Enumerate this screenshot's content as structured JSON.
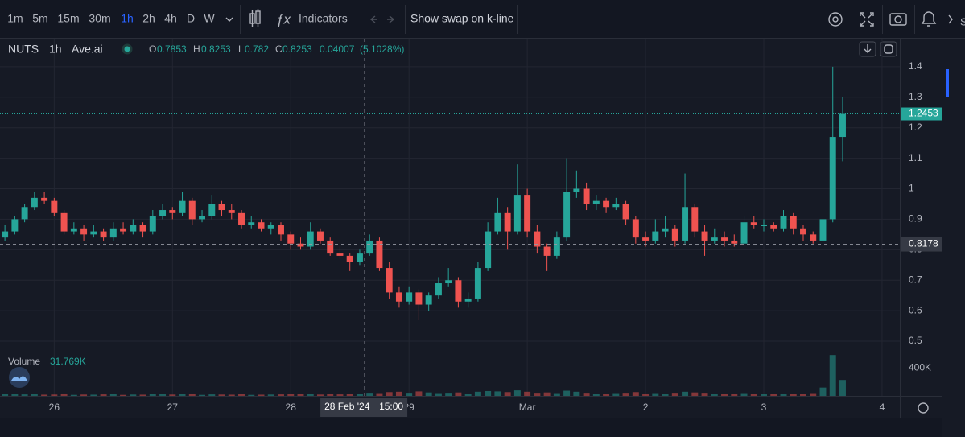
{
  "toolbar": {
    "intervals": [
      "1m",
      "5m",
      "15m",
      "30m",
      "1h",
      "2h",
      "4h",
      "D",
      "W"
    ],
    "active_interval": "1h",
    "indicators": "Indicators",
    "swap_toggle": "Show swap on k-line"
  },
  "chart_data": {
    "type": "candlestick",
    "legend": {
      "symbol": "NUTS",
      "interval": "1h",
      "source": "Ave.ai",
      "open_label": "O",
      "open": "0.7853",
      "high_label": "H",
      "high": "0.8253",
      "low_label": "L",
      "low": "0.782",
      "close_label": "C",
      "close": "0.8253",
      "change": "0.04007",
      "change_pct": "(5.1028%)"
    },
    "up_color": "#26a69a",
    "down_color": "#ef5350",
    "grid": true,
    "xlim": [
      -0.5,
      90.8
    ],
    "xticks": [
      {
        "value": 5,
        "label": "26"
      },
      {
        "value": 17,
        "label": "27"
      },
      {
        "value": 29,
        "label": "28"
      },
      {
        "value": 41,
        "label": "29"
      },
      {
        "value": 53,
        "label": "Mar"
      },
      {
        "value": 65,
        "label": "2"
      },
      {
        "value": 77,
        "label": "3"
      },
      {
        "value": 89,
        "label": "4"
      }
    ],
    "ylim": [
      0.479,
      1.492
    ],
    "yticks": [
      0.5,
      0.6,
      0.7,
      0.8,
      0.9,
      1,
      1.1,
      1.2,
      1.3,
      1.4
    ],
    "last_price": 1.2453,
    "crosshair": {
      "x": 36.5,
      "price": 0.8178,
      "date_label": "28 Feb '24",
      "time_label": "15:00"
    },
    "candles": [
      [
        0.84,
        0.88,
        0.83,
        0.86
      ],
      [
        0.86,
        0.91,
        0.85,
        0.9
      ],
      [
        0.9,
        0.95,
        0.89,
        0.94
      ],
      [
        0.94,
        0.99,
        0.93,
        0.97
      ],
      [
        0.97,
        0.99,
        0.95,
        0.96
      ],
      [
        0.96,
        0.97,
        0.91,
        0.92
      ],
      [
        0.92,
        0.93,
        0.85,
        0.86
      ],
      [
        0.86,
        0.89,
        0.85,
        0.87
      ],
      [
        0.87,
        0.88,
        0.83,
        0.85
      ],
      [
        0.85,
        0.88,
        0.84,
        0.86
      ],
      [
        0.86,
        0.87,
        0.83,
        0.84
      ],
      [
        0.84,
        0.89,
        0.83,
        0.87
      ],
      [
        0.87,
        0.89,
        0.85,
        0.86
      ],
      [
        0.86,
        0.9,
        0.85,
        0.88
      ],
      [
        0.88,
        0.89,
        0.84,
        0.86
      ],
      [
        0.86,
        0.93,
        0.85,
        0.91
      ],
      [
        0.91,
        0.95,
        0.9,
        0.93
      ],
      [
        0.93,
        0.94,
        0.9,
        0.92
      ],
      [
        0.92,
        0.99,
        0.91,
        0.96
      ],
      [
        0.96,
        0.97,
        0.88,
        0.9
      ],
      [
        0.9,
        0.93,
        0.89,
        0.91
      ],
      [
        0.91,
        0.98,
        0.9,
        0.95
      ],
      [
        0.95,
        0.96,
        0.91,
        0.93
      ],
      [
        0.93,
        0.95,
        0.9,
        0.92
      ],
      [
        0.92,
        0.93,
        0.87,
        0.88
      ],
      [
        0.88,
        0.91,
        0.87,
        0.89
      ],
      [
        0.89,
        0.9,
        0.86,
        0.87
      ],
      [
        0.87,
        0.89,
        0.85,
        0.88
      ],
      [
        0.88,
        0.89,
        0.83,
        0.85
      ],
      [
        0.85,
        0.86,
        0.8,
        0.82
      ],
      [
        0.82,
        0.84,
        0.8,
        0.81
      ],
      [
        0.81,
        0.89,
        0.8,
        0.86
      ],
      [
        0.86,
        0.87,
        0.82,
        0.83
      ],
      [
        0.83,
        0.84,
        0.78,
        0.79
      ],
      [
        0.79,
        0.81,
        0.77,
        0.78
      ],
      [
        0.78,
        0.79,
        0.73,
        0.76
      ],
      [
        0.76,
        0.8,
        0.75,
        0.79
      ],
      [
        0.79,
        0.85,
        0.78,
        0.83
      ],
      [
        0.83,
        0.84,
        0.73,
        0.74
      ],
      [
        0.74,
        0.76,
        0.64,
        0.66
      ],
      [
        0.66,
        0.68,
        0.61,
        0.63
      ],
      [
        0.63,
        0.68,
        0.62,
        0.66
      ],
      [
        0.66,
        0.67,
        0.57,
        0.62
      ],
      [
        0.62,
        0.66,
        0.6,
        0.65
      ],
      [
        0.65,
        0.71,
        0.64,
        0.69
      ],
      [
        0.69,
        0.74,
        0.68,
        0.7
      ],
      [
        0.7,
        0.71,
        0.61,
        0.63
      ],
      [
        0.63,
        0.66,
        0.61,
        0.64
      ],
      [
        0.64,
        0.76,
        0.63,
        0.74
      ],
      [
        0.74,
        0.89,
        0.73,
        0.86
      ],
      [
        0.86,
        0.97,
        0.85,
        0.92
      ],
      [
        0.92,
        0.94,
        0.8,
        0.86
      ],
      [
        0.86,
        1.08,
        0.85,
        0.98
      ],
      [
        0.98,
        1.0,
        0.84,
        0.86
      ],
      [
        0.86,
        0.88,
        0.79,
        0.81
      ],
      [
        0.81,
        0.82,
        0.73,
        0.78
      ],
      [
        0.78,
        0.86,
        0.77,
        0.84
      ],
      [
        0.84,
        1.1,
        0.83,
        0.99
      ],
      [
        0.99,
        1.06,
        0.97,
        1.0
      ],
      [
        1.0,
        1.02,
        0.93,
        0.95
      ],
      [
        0.95,
        0.98,
        0.93,
        0.96
      ],
      [
        0.96,
        0.97,
        0.92,
        0.94
      ],
      [
        0.94,
        0.97,
        0.93,
        0.95
      ],
      [
        0.95,
        0.96,
        0.88,
        0.9
      ],
      [
        0.9,
        0.91,
        0.82,
        0.84
      ],
      [
        0.84,
        0.86,
        0.81,
        0.83
      ],
      [
        0.83,
        0.9,
        0.82,
        0.86
      ],
      [
        0.86,
        0.91,
        0.84,
        0.87
      ],
      [
        0.87,
        0.88,
        0.81,
        0.83
      ],
      [
        0.83,
        1.05,
        0.82,
        0.94
      ],
      [
        0.94,
        0.95,
        0.84,
        0.86
      ],
      [
        0.86,
        0.88,
        0.78,
        0.83
      ],
      [
        0.83,
        0.87,
        0.82,
        0.84
      ],
      [
        0.84,
        0.86,
        0.81,
        0.83
      ],
      [
        0.83,
        0.85,
        0.81,
        0.82
      ],
      [
        0.82,
        0.91,
        0.81,
        0.89
      ],
      [
        0.89,
        0.91,
        0.87,
        0.88
      ],
      [
        0.88,
        0.9,
        0.86,
        0.88
      ],
      [
        0.88,
        0.89,
        0.86,
        0.87
      ],
      [
        0.87,
        0.93,
        0.86,
        0.91
      ],
      [
        0.91,
        0.92,
        0.85,
        0.87
      ],
      [
        0.87,
        0.88,
        0.83,
        0.85
      ],
      [
        0.85,
        0.86,
        0.82,
        0.83
      ],
      [
        0.83,
        0.92,
        0.82,
        0.9
      ],
      [
        0.9,
        1.4,
        0.89,
        1.17
      ],
      [
        1.17,
        1.3,
        1.09,
        1.2453
      ]
    ],
    "volume": {
      "label": "Volume",
      "readout": "31.769K",
      "ylim": [
        0,
        650000
      ],
      "yticks": [
        {
          "value": 400000,
          "label": "400K"
        }
      ],
      "values": [
        30000,
        25000,
        22000,
        28000,
        18000,
        20000,
        35000,
        15000,
        20000,
        18000,
        22000,
        25000,
        15000,
        20000,
        18000,
        30000,
        25000,
        20000,
        28000,
        35000,
        15000,
        22000,
        20000,
        18000,
        25000,
        15000,
        18000,
        20000,
        22000,
        30000,
        25000,
        28000,
        20000,
        25000,
        22000,
        30000,
        35000,
        45000,
        40000,
        55000,
        60000,
        45000,
        65000,
        50000,
        40000,
        45000,
        50000,
        35000,
        60000,
        70000,
        65000,
        55000,
        80000,
        60000,
        45000,
        50000,
        40000,
        75000,
        60000,
        45000,
        35000,
        30000,
        40000,
        45000,
        55000,
        35000,
        40000,
        30000,
        45000,
        60000,
        50000,
        45000,
        35000,
        30000,
        25000,
        40000,
        30000,
        25000,
        30000,
        35000,
        25000,
        30000,
        40000,
        120000,
        590000,
        230000
      ]
    }
  }
}
